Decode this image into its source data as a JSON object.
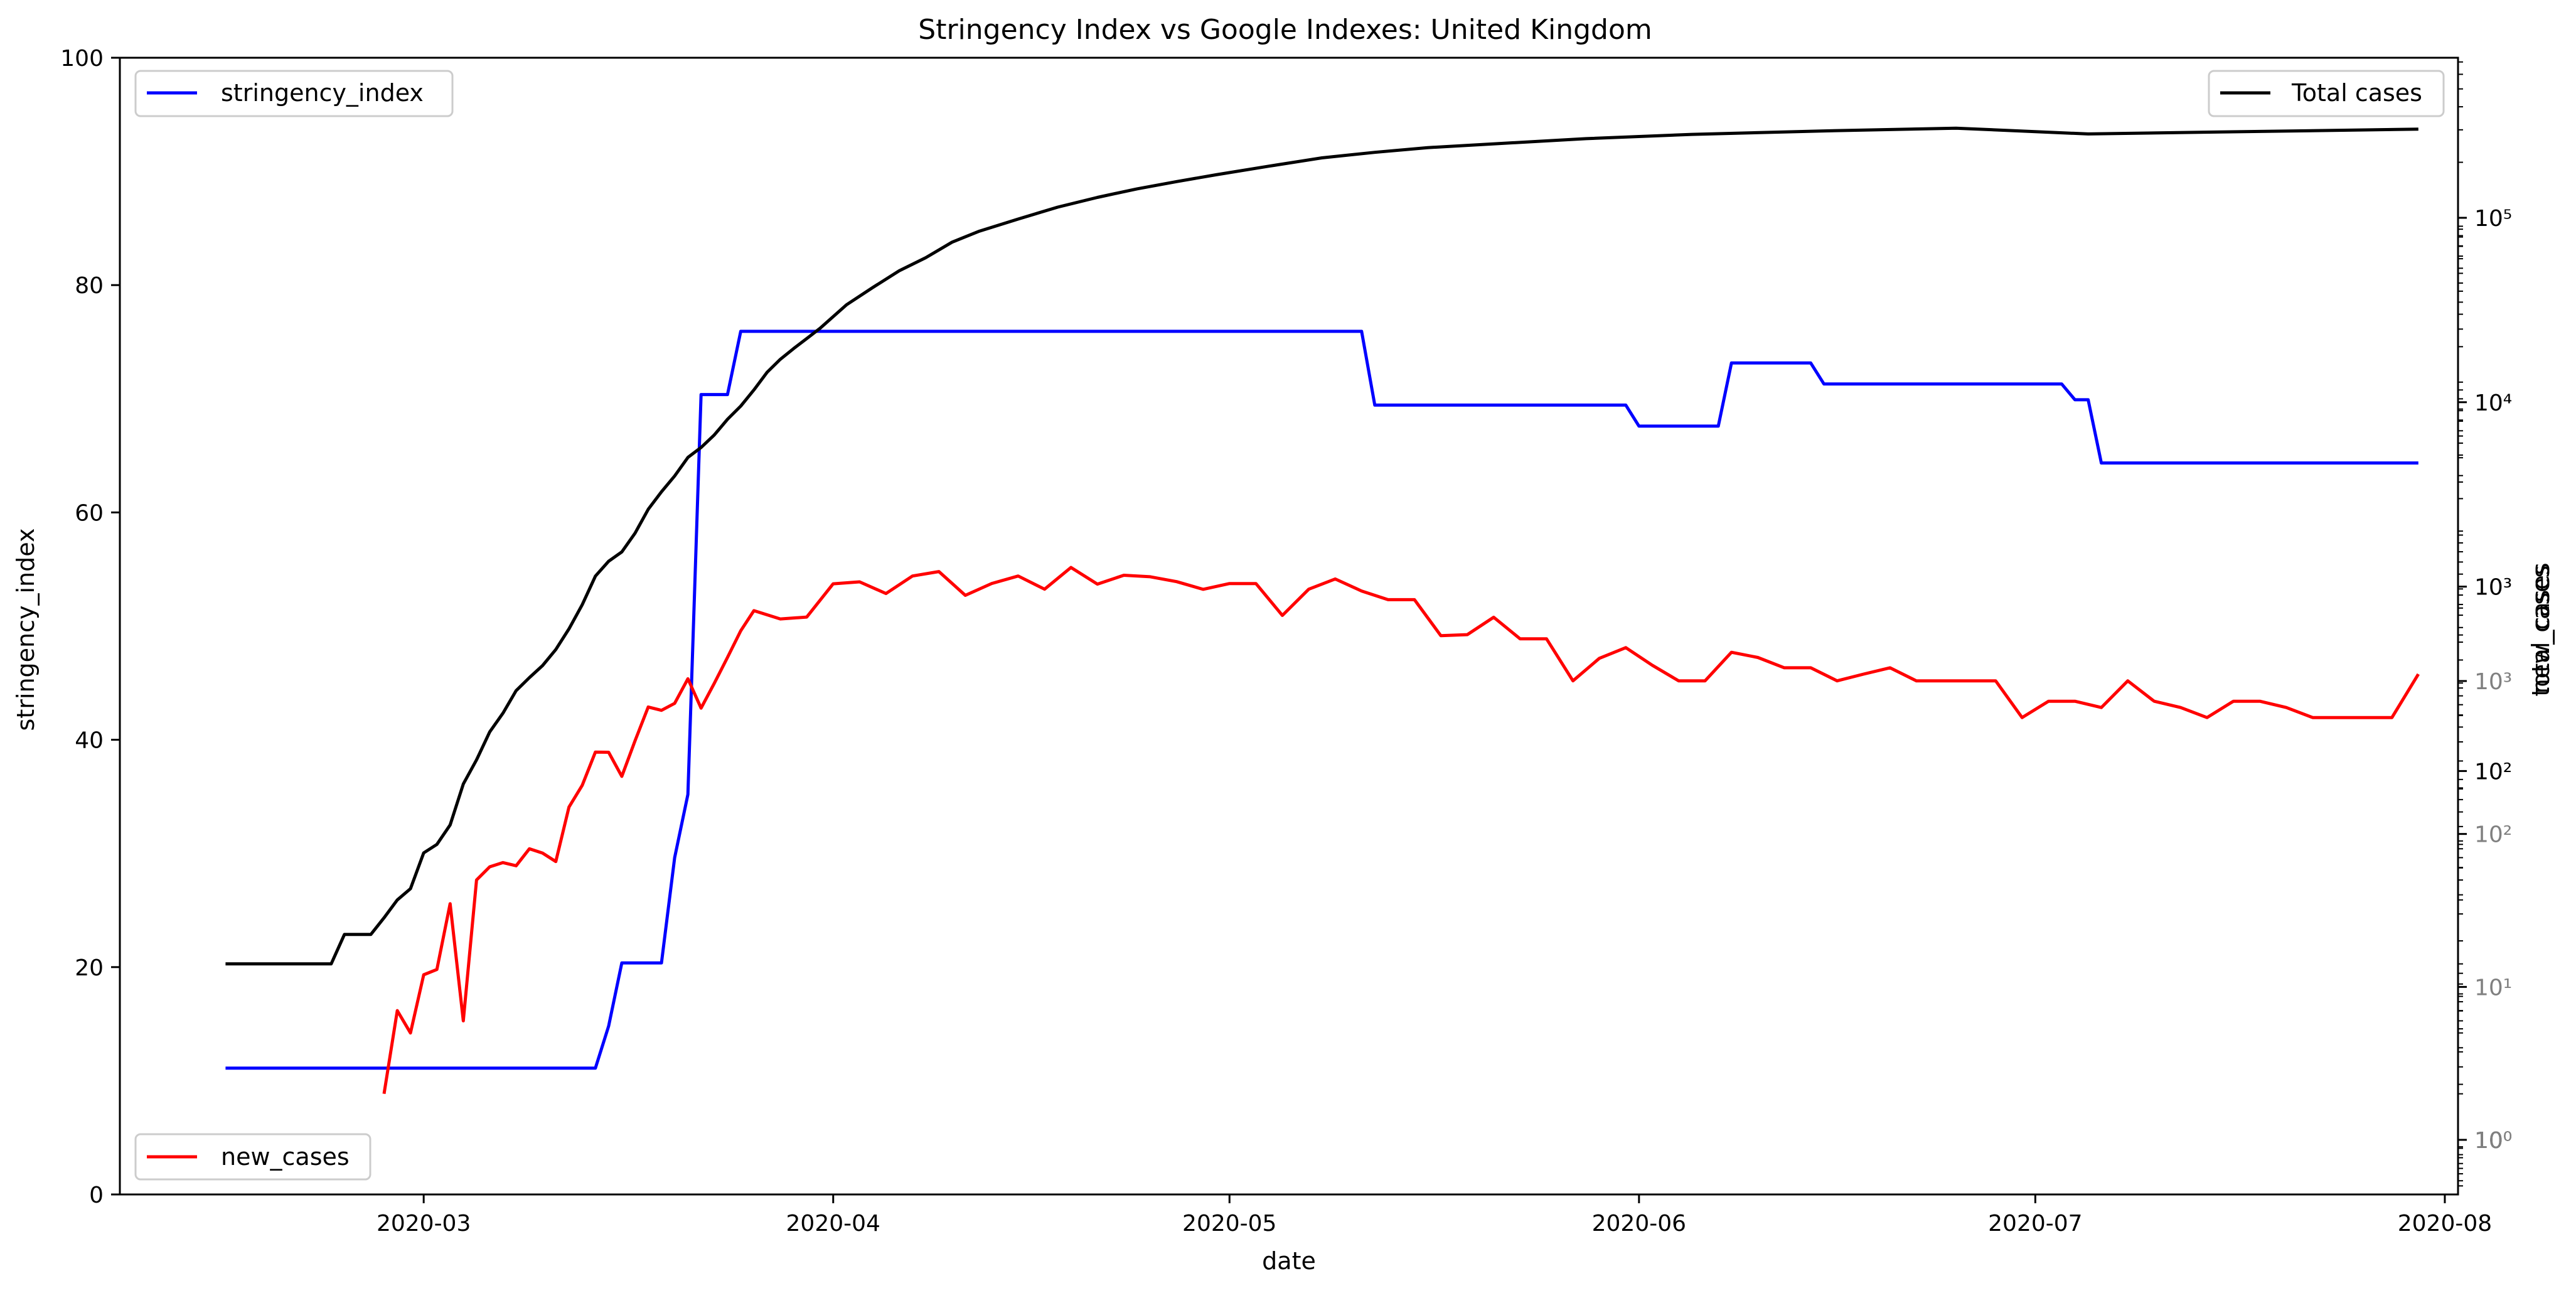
{
  "chart_data": {
    "type": "line",
    "title": "Stringency Index vs Google Indexes:  United Kingdom",
    "xlabel": "date",
    "x_ticks": [
      "2020-03",
      "2020-04",
      "2020-05",
      "2020-06",
      "2020-07",
      "2020-08"
    ],
    "xlim": [
      "2020-02-07",
      "2020-08-02"
    ],
    "axes": {
      "left": {
        "ylabel": "stringency_index",
        "ylim": [
          0,
          100
        ],
        "ticks": [
          "0",
          "20",
          "40",
          "60",
          "80",
          "100"
        ]
      },
      "right_total_cases": {
        "scale": "log",
        "ylabel": "total_cases",
        "ticks": [
          {
            "value": 1,
            "label": "10⁰"
          },
          {
            "value": 100,
            "label": "10²"
          },
          {
            "value": 1000,
            "label": "10³"
          },
          {
            "value": 10000,
            "label": "10⁴"
          },
          {
            "value": 100000,
            "label": "10⁵"
          }
        ]
      },
      "right_new_cases": {
        "scale": "log",
        "ylabel": "new_cases",
        "ticks": [
          {
            "value": 1,
            "label": "10⁰"
          },
          {
            "value": 10,
            "label": "10¹"
          },
          {
            "value": 100,
            "label": "10²"
          },
          {
            "value": 1000,
            "label": "10³"
          }
        ]
      }
    },
    "legends": [
      {
        "label": "stringency_index",
        "color": "#0000ff",
        "position": "upper-left"
      },
      {
        "label": "Total cases",
        "color": "#000000",
        "position": "upper-right"
      },
      {
        "label": "new_cases",
        "color": "#ff0000",
        "position": "lower-left"
      }
    ],
    "series": [
      {
        "name": "stringency_index",
        "axis": "left",
        "color": "#0000ff",
        "x": [
          "2020-02-15",
          "2020-03-14",
          "2020-03-15",
          "2020-03-16",
          "2020-03-17",
          "2020-03-18",
          "2020-03-19",
          "2020-03-20",
          "2020-03-21",
          "2020-03-22",
          "2020-03-23",
          "2020-03-24",
          "2020-03-25",
          "2020-03-26",
          "2020-05-11",
          "2020-05-12",
          "2020-05-31",
          "2020-06-01",
          "2020-06-07",
          "2020-06-08",
          "2020-06-14",
          "2020-06-15",
          "2020-07-03",
          "2020-07-04",
          "2020-07-05",
          "2020-07-06",
          "2020-07-30"
        ],
        "y": [
          11.11,
          11.11,
          14.81,
          20.37,
          20.37,
          20.37,
          20.37,
          29.63,
          35.19,
          70.37,
          70.37,
          70.37,
          75.93,
          75.93,
          75.93,
          69.44,
          69.44,
          67.59,
          67.59,
          73.15,
          73.15,
          71.3,
          71.3,
          69.91,
          69.91,
          64.35,
          64.35
        ]
      },
      {
        "name": "Total cases",
        "axis": "right_total_cases",
        "color": "#000000",
        "x": [
          "2020-02-15",
          "2020-02-22",
          "2020-02-23",
          "2020-02-24",
          "2020-02-25",
          "2020-02-26",
          "2020-02-27",
          "2020-02-28",
          "2020-02-29",
          "2020-03-01",
          "2020-03-02",
          "2020-03-03",
          "2020-03-04",
          "2020-03-05",
          "2020-03-06",
          "2020-03-07",
          "2020-03-08",
          "2020-03-09",
          "2020-03-10",
          "2020-03-11",
          "2020-03-12",
          "2020-03-13",
          "2020-03-14",
          "2020-03-15",
          "2020-03-16",
          "2020-03-17",
          "2020-03-18",
          "2020-03-19",
          "2020-03-20",
          "2020-03-21",
          "2020-03-22",
          "2020-03-23",
          "2020-03-24",
          "2020-03-25",
          "2020-03-26",
          "2020-03-27",
          "2020-03-28",
          "2020-03-29",
          "2020-03-30",
          "2020-03-31",
          "2020-04-02",
          "2020-04-04",
          "2020-04-06",
          "2020-04-08",
          "2020-04-10",
          "2020-04-12",
          "2020-04-15",
          "2020-04-18",
          "2020-04-21",
          "2020-04-24",
          "2020-04-27",
          "2020-04-30",
          "2020-05-04",
          "2020-05-08",
          "2020-05-12",
          "2020-05-16",
          "2020-05-22",
          "2020-05-28",
          "2020-06-05",
          "2020-06-15",
          "2020-06-25",
          "2020-07-05",
          "2020-07-15",
          "2020-07-30"
        ],
        "y": [
          9,
          9,
          9,
          13,
          13,
          13,
          16,
          20,
          23,
          36,
          40,
          51,
          85,
          115,
          163,
          206,
          273,
          321,
          373,
          456,
          590,
          798,
          1140,
          1372,
          1543,
          1950,
          2626,
          3269,
          3983,
          5018,
          5683,
          6650,
          8077,
          9529,
          11658,
          14543,
          17089,
          19522,
          22141,
          25150,
          33718,
          41903,
          51608,
          60733,
          73758,
          84279,
          98476,
          114217,
          129044,
          143464,
          157149,
          171253,
          190584,
          211364,
          226463,
          240161,
          254195,
          268619,
          283311,
          295889,
          306210,
          284900,
          291911,
          302301
        ]
      },
      {
        "name": "new_cases",
        "axis": "right_new_cases",
        "color": "#ff0000",
        "x": [
          "2020-02-27",
          "2020-02-28",
          "2020-02-29",
          "2020-03-01",
          "2020-03-02",
          "2020-03-03",
          "2020-03-04",
          "2020-03-05",
          "2020-03-06",
          "2020-03-07",
          "2020-03-08",
          "2020-03-09",
          "2020-03-10",
          "2020-03-11",
          "2020-03-12",
          "2020-03-13",
          "2020-03-14",
          "2020-03-15",
          "2020-03-16",
          "2020-03-17",
          "2020-03-18",
          "2020-03-19",
          "2020-03-20",
          "2020-03-21",
          "2020-03-22",
          "2020-03-23",
          "2020-03-24",
          "2020-03-25",
          "2020-03-26",
          "2020-03-28",
          "2020-03-30",
          "2020-04-01",
          "2020-04-03",
          "2020-04-05",
          "2020-04-07",
          "2020-04-09",
          "2020-04-11",
          "2020-04-13",
          "2020-04-15",
          "2020-04-17",
          "2020-04-19",
          "2020-04-21",
          "2020-04-23",
          "2020-04-25",
          "2020-04-27",
          "2020-04-29",
          "2020-05-01",
          "2020-05-03",
          "2020-05-05",
          "2020-05-07",
          "2020-05-09",
          "2020-05-11",
          "2020-05-13",
          "2020-05-15",
          "2020-05-17",
          "2020-05-19",
          "2020-05-21",
          "2020-05-23",
          "2020-05-25",
          "2020-05-27",
          "2020-05-29",
          "2020-05-31",
          "2020-06-02",
          "2020-06-04",
          "2020-06-06",
          "2020-06-08",
          "2020-06-10",
          "2020-06-12",
          "2020-06-14",
          "2020-06-16",
          "2020-06-18",
          "2020-06-20",
          "2020-06-22",
          "2020-06-24",
          "2020-06-26",
          "2020-06-28",
          "2020-06-30",
          "2020-07-02",
          "2020-07-04",
          "2020-07-06",
          "2020-07-08",
          "2020-07-10",
          "2020-07-12",
          "2020-07-14",
          "2020-07-16",
          "2020-07-18",
          "2020-07-20",
          "2020-07-22",
          "2020-07-24",
          "2020-07-26",
          "2020-07-28",
          "2020-07-30"
        ],
        "y": [
          2,
          7,
          5,
          12,
          13,
          35,
          6,
          50,
          61,
          65,
          62,
          80,
          75,
          66,
          150,
          208,
          343,
          342,
          238,
          407,
          676,
          643,
          714,
          1035,
          665,
          967,
          1427,
          2129,
          2885,
          2546,
          2619,
          4324,
          4450,
          3735,
          4858,
          5195,
          3634,
          4342,
          4858,
          3985,
          5525,
          4301,
          4913,
          4806,
          4463,
          3977,
          4339,
          4339,
          2684,
          3985,
          4649,
          3877,
          3403,
          3403,
          1979,
          2010,
          2613,
          1887,
          1887,
          1003,
          1408,
          1653,
          1269,
          1003,
          1003,
          1541,
          1425,
          1221,
          1221,
          1003,
          1110,
          1221,
          1003,
          1003,
          1003,
          1003,
          577,
          738,
          738,
          671,
          1003,
          738,
          671,
          577,
          738,
          738,
          671,
          577,
          577,
          577,
          577,
          1110
        ]
      }
    ]
  }
}
